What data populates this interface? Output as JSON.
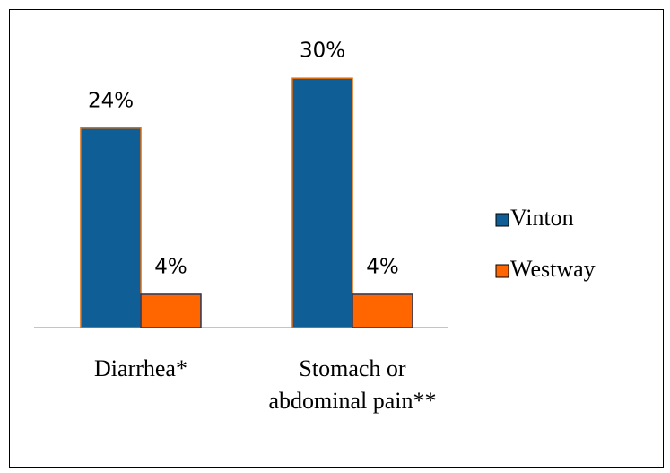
{
  "chart_data": {
    "type": "bar",
    "categories": [
      "Diarrhea*",
      "Stomach or abdominal pain**"
    ],
    "series": [
      {
        "name": "Vinton",
        "color": "#0f5f96",
        "values": [
          24,
          30
        ],
        "value_labels": [
          "24%",
          "30%"
        ]
      },
      {
        "name": "Westway",
        "color": "#ff6600",
        "values": [
          4,
          4
        ],
        "value_labels": [
          "4%",
          "4%"
        ]
      }
    ],
    "legend": "right"
  }
}
